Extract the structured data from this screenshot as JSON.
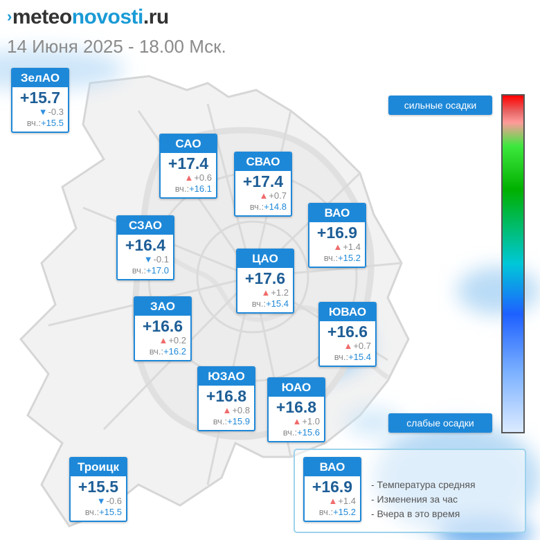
{
  "header": {
    "logo_part1": "meteo",
    "logo_part2": "novosti",
    "logo_part3": ".ru",
    "logo_mark": "›",
    "subtitle": "14 Июня 2025 - 18.00 Мск."
  },
  "districts": [
    {
      "name": "ЗелАО",
      "temp": "+15.7",
      "trend": "down",
      "change": "-0.3",
      "yesterday_label": "вч.:",
      "yesterday": "+15.5"
    },
    {
      "name": "САО",
      "temp": "+17.4",
      "trend": "up",
      "change": "+0.6",
      "yesterday_label": "вч.:",
      "yesterday": "+16.1"
    },
    {
      "name": "СВАО",
      "temp": "+17.4",
      "trend": "up",
      "change": "+0.7",
      "yesterday_label": "вч.:",
      "yesterday": "+14.8"
    },
    {
      "name": "ВАО",
      "temp": "+16.9",
      "trend": "up",
      "change": "+1.4",
      "yesterday_label": "вч.:",
      "yesterday": "+15.2"
    },
    {
      "name": "СЗАО",
      "temp": "+16.4",
      "trend": "down",
      "change": "-0.1",
      "yesterday_label": "вч.:",
      "yesterday": "+17.0"
    },
    {
      "name": "ЦАО",
      "temp": "+17.6",
      "trend": "up",
      "change": "+1.2",
      "yesterday_label": "вч.:",
      "yesterday": "+15.4"
    },
    {
      "name": "ЗАО",
      "temp": "+16.6",
      "trend": "up",
      "change": "+0.2",
      "yesterday_label": "вч.:",
      "yesterday": "+16.2"
    },
    {
      "name": "ЮВАО",
      "temp": "+16.6",
      "trend": "up",
      "change": "+0.7",
      "yesterday_label": "вч.:",
      "yesterday": "+15.4"
    },
    {
      "name": "ЮЗАО",
      "temp": "+16.8",
      "trend": "up",
      "change": "+0.8",
      "yesterday_label": "вч.:",
      "yesterday": "+15.9"
    },
    {
      "name": "ЮАО",
      "temp": "+16.8",
      "trend": "up",
      "change": "+1.0",
      "yesterday_label": "вч.:",
      "yesterday": "+15.6"
    },
    {
      "name": "Троицк",
      "temp": "+15.5",
      "trend": "down",
      "change": "-0.6",
      "yesterday_label": "вч.:",
      "yesterday": "+15.5"
    }
  ],
  "scale": {
    "top_label": "сильные осадки",
    "bottom_label": "слабые осадки"
  },
  "legend": {
    "example": {
      "name": "ВАО",
      "temp": "+16.9",
      "trend": "up",
      "change": "+1.4",
      "yesterday_label": "вч.:",
      "yesterday": "+15.2"
    },
    "line1": "- Температура средняя",
    "line2": "- Изменения за час",
    "line3": "- Вчера в это время"
  },
  "icons": {
    "up": "triangle-up-icon",
    "down": "triangle-down-icon"
  },
  "colors": {
    "accent": "#1e88d8",
    "temperature": "#1e5e96",
    "rise": "#ef6b6b",
    "fall": "#2f8fe0",
    "precip_light": "#cfe6f7",
    "precip": "#7fbdf0",
    "road": "#d9d9d9"
  }
}
